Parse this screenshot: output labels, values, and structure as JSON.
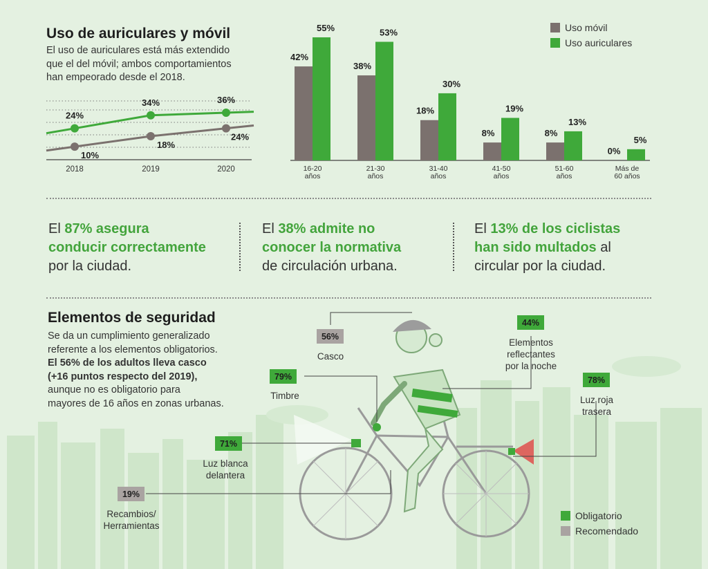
{
  "colors": {
    "green": "#3fa93a",
    "gray": "#7b716e",
    "light_green": "#bfe0b8",
    "recommended_gray": "#a9a3a1"
  },
  "usage": {
    "title": "Uso de auriculares y móvil",
    "description_lines": [
      "El uso de auriculares está más extendido",
      "que el del móvil; ambos comportamientos",
      "han empeorado desde el 2018."
    ]
  },
  "stats": {
    "s1": {
      "pre": "El ",
      "highlight_1": "87% asegura",
      "highlight_2": "conducir correctamente",
      "post": "por la ciudad."
    },
    "s2": {
      "pre": "El ",
      "highlight_1": "38% admite no",
      "highlight_2": "conocer la normativa",
      "post": "de circulación urbana."
    },
    "s3": {
      "pre": "El ",
      "highlight_1": "13% de los ciclistas",
      "highlight_2": "han sido multados",
      "post_inline": " al",
      "post": "circular por la ciudad."
    }
  },
  "safety": {
    "title": "Elementos de seguridad",
    "line1": "Se da un cumplimiento generalizado",
    "line2": "referente a los elementos obligatorios.",
    "bold1": "El 56% de los adultos lleva casco",
    "bold2": "(+16 puntos respecto del 2019),",
    "line3": "aunque no es obligatorio para",
    "line4": "mayores de 16 años en zonas urbanas.",
    "items": [
      {
        "value": "56%",
        "label_lines": [
          "Casco"
        ],
        "type": "Recomendado"
      },
      {
        "value": "44%",
        "label_lines": [
          "Elementos",
          "reflectantes",
          "por la noche"
        ],
        "type": "Obligatorio"
      },
      {
        "value": "79%",
        "label_lines": [
          "Timbre"
        ],
        "type": "Obligatorio"
      },
      {
        "value": "78%",
        "label_lines": [
          "Luz roja",
          "trasera"
        ],
        "type": "Obligatorio"
      },
      {
        "value": "71%",
        "label_lines": [
          "Luz blanca",
          "delantera"
        ],
        "type": "Obligatorio"
      },
      {
        "value": "19%",
        "label_lines": [
          "Recambios/",
          "Herramientas"
        ],
        "type": "Recomendado"
      }
    ],
    "legend": {
      "mandatory": "Obligatorio",
      "recommended": "Recomendado"
    }
  },
  "chart_data": [
    {
      "type": "line",
      "x": [
        "2018",
        "2019",
        "2020"
      ],
      "series": [
        {
          "color": "#3fa93a",
          "values": [
            24,
            34,
            36
          ],
          "labels": [
            "24%",
            "34%",
            "36%"
          ]
        },
        {
          "color": "#7b716e",
          "values": [
            10,
            18,
            24
          ],
          "labels": [
            "10%",
            "18%",
            "24%"
          ]
        }
      ],
      "ylim": [
        0,
        45
      ],
      "grid": true
    },
    {
      "type": "bar",
      "categories": [
        [
          "16-20",
          "años"
        ],
        [
          "21-30",
          "años"
        ],
        [
          "31-40",
          "años"
        ],
        [
          "41-50",
          "años"
        ],
        [
          "51-60",
          "años"
        ],
        [
          "Más de",
          "60 años"
        ]
      ],
      "series": [
        {
          "name": "Uso móvil",
          "color": "#7b716e",
          "values": [
            42,
            38,
            18,
            8,
            8,
            0
          ],
          "labels": [
            "42%",
            "38%",
            "18%",
            "8%",
            "8%",
            "0%"
          ]
        },
        {
          "name": "Uso auriculares",
          "color": "#3fa93a",
          "values": [
            55,
            53,
            30,
            19,
            13,
            5
          ],
          "labels": [
            "55%",
            "53%",
            "30%",
            "19%",
            "13%",
            "5%"
          ]
        }
      ],
      "ylim": [
        0,
        55
      ],
      "legend": "top-right"
    }
  ]
}
